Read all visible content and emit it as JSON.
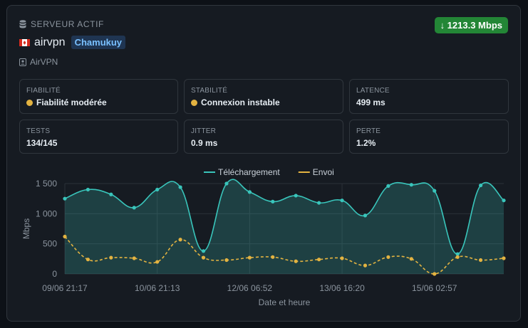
{
  "header": {
    "label": "SERVEUR ACTIF",
    "speed_badge": "↓ 1213.3 Mbps",
    "speed_color": "#238636"
  },
  "server": {
    "flag": "canada-flag",
    "name": "airvpn",
    "tag": "Chamukuy",
    "provider": "AirVPN"
  },
  "stats": [
    {
      "label": "FIABILITÉ",
      "value": "Fiabilité modérée",
      "dot": true
    },
    {
      "label": "STABILITÉ",
      "value": "Connexion instable",
      "dot": true
    },
    {
      "label": "LATENCE",
      "value": "499 ms",
      "dot": false
    },
    {
      "label": "TESTS",
      "value": "134/145",
      "dot": false
    },
    {
      "label": "JITTER",
      "value": "0.9 ms",
      "dot": false
    },
    {
      "label": "PERTE",
      "value": "1.2%",
      "dot": false
    }
  ],
  "chart_data": {
    "type": "line",
    "xlabel": "Date et heure",
    "ylabel": "Mbps",
    "ylim": [
      0,
      1500
    ],
    "yticks": [
      0,
      500,
      1000,
      1500
    ],
    "ytick_labels": [
      "0",
      "500",
      "1 000",
      "1 500"
    ],
    "xtick_labels": [
      "09/06 21:17",
      "10/06 21:13",
      "12/06 06:52",
      "13/06 16:20",
      "15/06 02:57"
    ],
    "xtick_indices": [
      0,
      4,
      8,
      12,
      16
    ],
    "legend": "top",
    "grid": true,
    "series": [
      {
        "name": "Téléchargement",
        "color": "#39c5bb",
        "fill": true,
        "values": [
          1250,
          1400,
          1320,
          1100,
          1400,
          1440,
          380,
          1500,
          1360,
          1200,
          1300,
          1180,
          1220,
          970,
          1460,
          1480,
          1380,
          330,
          1470,
          1220
        ]
      },
      {
        "name": "Envoi",
        "color": "#e3b341",
        "dashed": true,
        "fill": false,
        "values": [
          620,
          240,
          270,
          260,
          200,
          570,
          270,
          230,
          270,
          280,
          210,
          240,
          260,
          140,
          280,
          250,
          0,
          280,
          230,
          260
        ]
      }
    ]
  }
}
